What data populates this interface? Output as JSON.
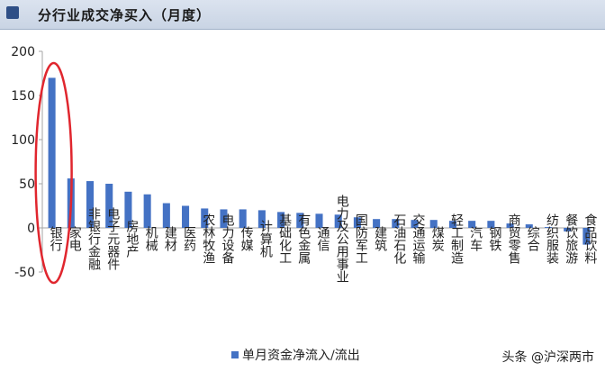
{
  "page": {
    "title": "分行业成交净买入（月度）"
  },
  "watermark": "头条 @沪深两市",
  "chart_data": {
    "type": "bar",
    "categories": [
      "银行",
      "家电",
      "非银行金融",
      "电子元器件",
      "房地产",
      "机械",
      "建材",
      "医药",
      "农林牧渔",
      "电力设备",
      "传媒",
      "计算机",
      "基础化工",
      "有色金属",
      "通信",
      "电力及公用事业",
      "国防军工",
      "建筑",
      "石油石化",
      "交通运输",
      "煤炭",
      "轻工制造",
      "汽车",
      "钢铁",
      "商贸零售",
      "综合",
      "纺织服装",
      "餐饮旅游",
      "食品饮料"
    ],
    "series": [
      {
        "name": "单月资金净流入/流出",
        "values": [
          170,
          56,
          53,
          50,
          41,
          38,
          28,
          25,
          22,
          21,
          21,
          20,
          18,
          17,
          16,
          15,
          12,
          10,
          10,
          9,
          9,
          8,
          8,
          8,
          5,
          4,
          1,
          -4,
          -19
        ]
      }
    ],
    "ylim": [
      -50,
      200
    ],
    "yticks": [
      -50,
      0,
      50,
      100,
      150,
      200
    ],
    "grid": false,
    "legend": "bottom",
    "colors": {
      "bar": "#4472c4",
      "highlight": "#e0262e",
      "axis": "#a6a6a6"
    },
    "highlight_category": "银行"
  }
}
